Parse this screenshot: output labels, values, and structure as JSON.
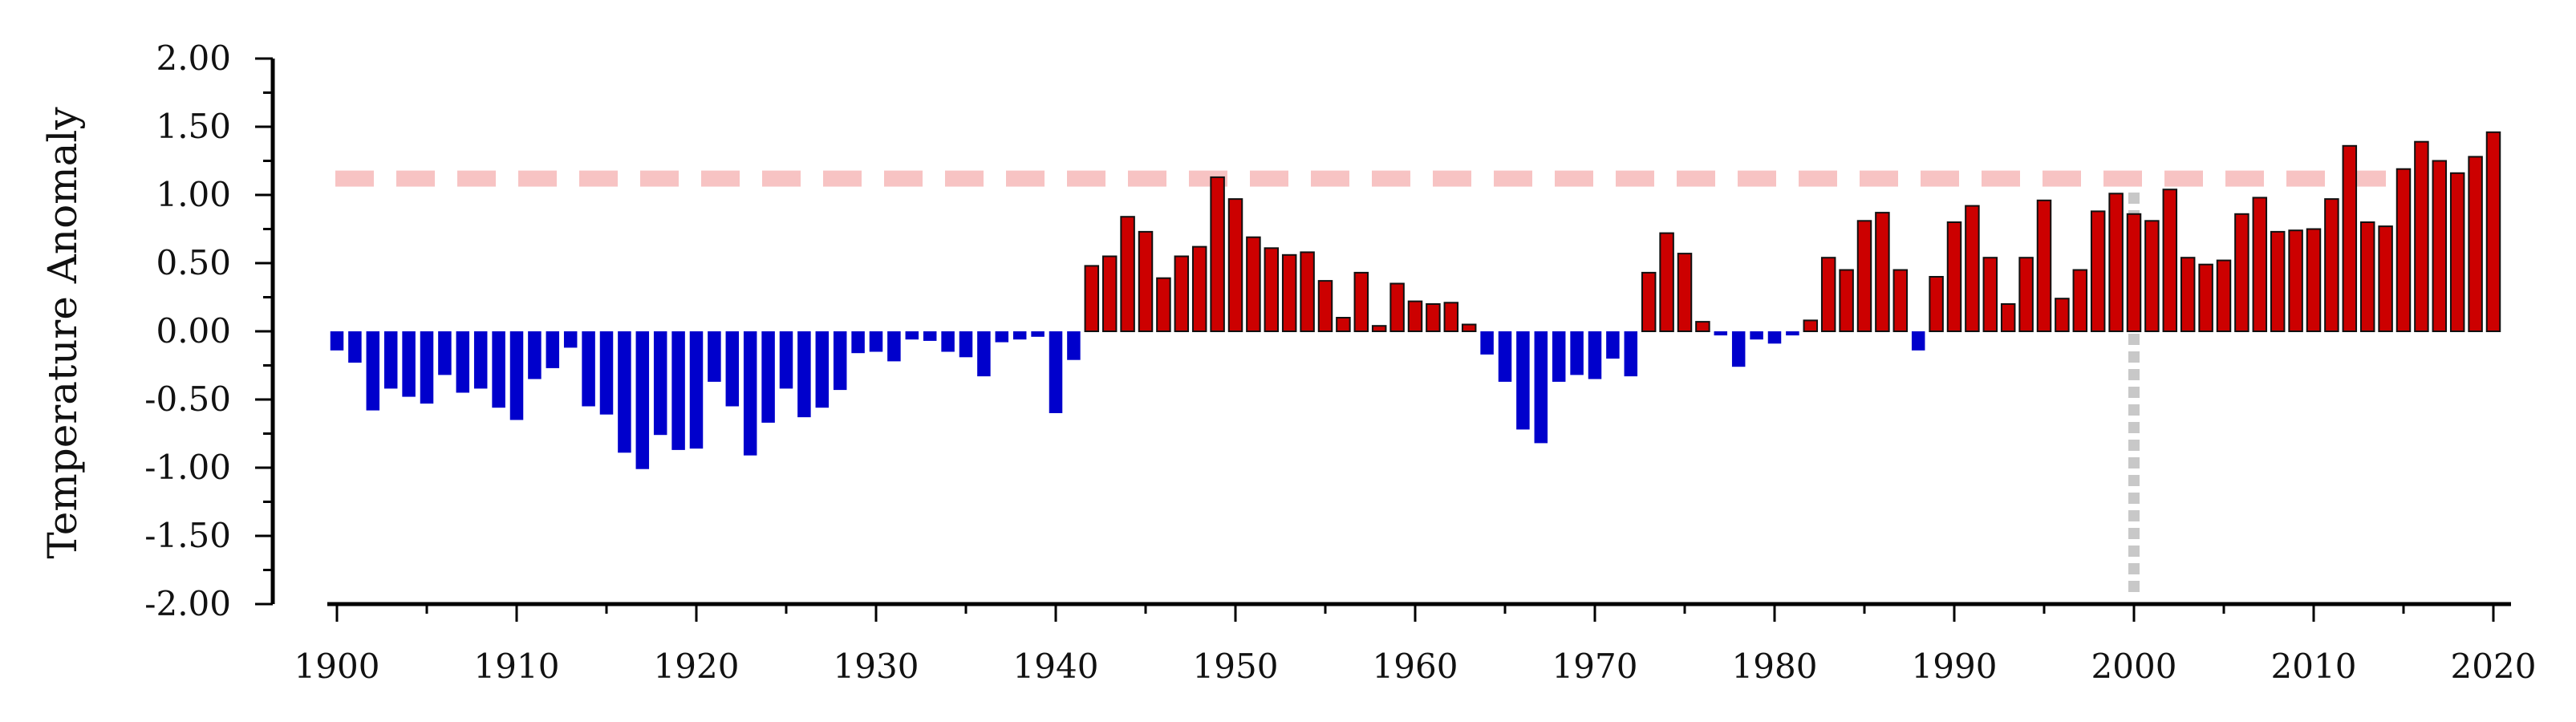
{
  "chart_data": {
    "type": "bar",
    "title": "",
    "xlabel": "",
    "ylabel": "Temperature Anomaly",
    "ylim": [
      -2.0,
      2.0
    ],
    "xlim": [
      1900,
      2020
    ],
    "y_ticks": [
      "2.00",
      "1.50",
      "1.00",
      "0.50",
      "0.00",
      "-0.50",
      "-1.00",
      "-1.50",
      "-2.00"
    ],
    "x_ticks": [
      "1900",
      "1910",
      "1920",
      "1930",
      "1940",
      "1950",
      "1960",
      "1970",
      "1980",
      "1990",
      "2000",
      "2010",
      "2020"
    ],
    "grid": false,
    "legend": "none",
    "colors": {
      "positive": "#cc0000",
      "negative": "#0000cc",
      "bar_outline": "#111111",
      "reference_line": "#f7c3c3",
      "marker_line": "#c8c8c8"
    },
    "reference_line": {
      "y": 1.12,
      "style": "dashed"
    },
    "vertical_marker": {
      "x": 2000,
      "style": "dotted"
    },
    "x": [
      1900,
      1901,
      1902,
      1903,
      1904,
      1905,
      1906,
      1907,
      1908,
      1909,
      1910,
      1911,
      1912,
      1913,
      1914,
      1915,
      1916,
      1917,
      1918,
      1919,
      1920,
      1921,
      1922,
      1923,
      1924,
      1925,
      1926,
      1927,
      1928,
      1929,
      1930,
      1931,
      1932,
      1933,
      1934,
      1935,
      1936,
      1937,
      1938,
      1939,
      1940,
      1941,
      1942,
      1943,
      1944,
      1945,
      1946,
      1947,
      1948,
      1949,
      1950,
      1951,
      1952,
      1953,
      1954,
      1955,
      1956,
      1957,
      1958,
      1959,
      1960,
      1961,
      1962,
      1963,
      1964,
      1965,
      1966,
      1967,
      1968,
      1969,
      1970,
      1971,
      1972,
      1973,
      1974,
      1975,
      1976,
      1977,
      1978,
      1979,
      1980,
      1981,
      1982,
      1983,
      1984,
      1985,
      1986,
      1987,
      1988,
      1989,
      1990,
      1991,
      1992,
      1993,
      1994,
      1995,
      1996,
      1997,
      1998,
      1999,
      2000,
      2001,
      2002,
      2003,
      2004,
      2005,
      2006,
      2007,
      2008,
      2009,
      2010,
      2011,
      2012,
      2013,
      2014,
      2015,
      2016,
      2017,
      2018,
      2019,
      2020
    ],
    "values": [
      -0.14,
      -0.23,
      -0.58,
      -0.42,
      -0.48,
      -0.53,
      -0.32,
      -0.45,
      -0.42,
      -0.56,
      -0.65,
      -0.35,
      -0.27,
      -0.12,
      -0.55,
      -0.61,
      -0.89,
      -1.01,
      -0.76,
      -0.87,
      -0.86,
      -0.37,
      -0.55,
      -0.91,
      -0.67,
      -0.42,
      -0.63,
      -0.56,
      -0.43,
      -0.16,
      -0.15,
      -0.22,
      -0.06,
      -0.07,
      -0.15,
      -0.19,
      -0.33,
      -0.08,
      -0.06,
      -0.04,
      -0.6,
      -0.21,
      0.48,
      0.55,
      0.84,
      0.73,
      0.39,
      0.55,
      0.62,
      1.13,
      0.97,
      0.69,
      0.61,
      0.56,
      0.58,
      0.37,
      0.1,
      0.43,
      0.04,
      0.35,
      0.22,
      0.2,
      0.21,
      0.05,
      -0.17,
      -0.37,
      -0.72,
      -0.82,
      -0.37,
      -0.32,
      -0.35,
      -0.2,
      -0.33,
      0.43,
      0.72,
      0.57,
      0.07,
      -0.03,
      -0.26,
      -0.06,
      -0.09,
      -0.03,
      0.08,
      0.54,
      0.45,
      0.81,
      0.87,
      0.45,
      -0.14,
      0.4,
      0.8,
      0.92,
      0.54,
      0.2,
      0.54,
      0.96,
      0.24,
      0.45,
      0.88,
      1.01,
      0.86,
      0.81,
      1.04,
      0.54,
      0.49,
      0.52,
      0.86,
      0.98,
      0.73,
      0.74,
      0.75,
      0.97,
      1.36,
      0.8,
      0.77,
      1.19,
      1.39,
      1.25,
      1.16,
      1.28,
      1.46
    ]
  }
}
